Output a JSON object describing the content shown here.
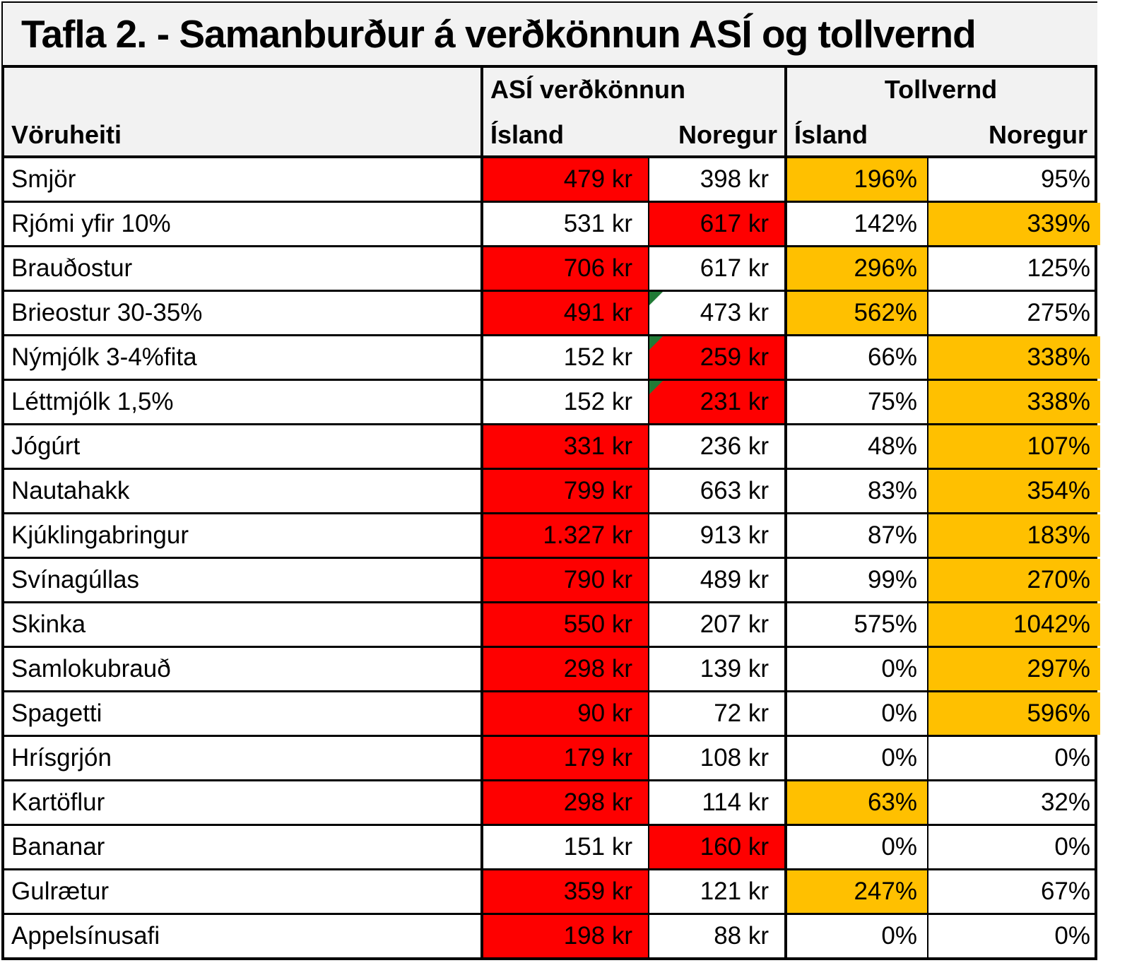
{
  "colors": {
    "red": "#fe0000",
    "orange": "#ffc000",
    "header_bg": "#f2f2f2",
    "row_bg": "#ffffff",
    "border": "#000000",
    "corner_green": "#217a36",
    "text": "#000000"
  },
  "chart_data": {
    "type": "table",
    "title": "Tafla 2. - Samanburður á verðkönnun ASÍ og tollvernd",
    "row_header": "Vöruheiti",
    "groups": [
      {
        "label": "ASÍ verðkönnun",
        "columns": [
          "Ísland",
          "Noregur"
        ]
      },
      {
        "label": "Tollvernd",
        "columns": [
          "Ísland",
          "Noregur"
        ]
      }
    ],
    "highlight_legend": {
      "red": "highlighted price cell",
      "orange": "highlighted tariff cell",
      "corner": "green corner indicator"
    },
    "rows": [
      {
        "name": "Smjör",
        "cells": [
          {
            "v": "479 kr",
            "fill": "red"
          },
          {
            "v": "398 kr"
          },
          {
            "v": "196%",
            "fill": "orange"
          },
          {
            "v": "95%"
          }
        ]
      },
      {
        "name": "Rjómi yfir 10%",
        "cells": [
          {
            "v": "531 kr"
          },
          {
            "v": "617 kr",
            "fill": "red"
          },
          {
            "v": "142%"
          },
          {
            "v": "339%",
            "fill": "orange"
          }
        ]
      },
      {
        "name": "Brauðostur",
        "cells": [
          {
            "v": "706 kr",
            "fill": "red"
          },
          {
            "v": "617 kr"
          },
          {
            "v": "296%",
            "fill": "orange"
          },
          {
            "v": "125%"
          }
        ]
      },
      {
        "name": "Brieostur 30-35%",
        "cells": [
          {
            "v": "491 kr",
            "fill": "red"
          },
          {
            "v": "473 kr",
            "corner": true
          },
          {
            "v": "562%",
            "fill": "orange"
          },
          {
            "v": "275%"
          }
        ]
      },
      {
        "name": "Nýmjólk 3-4%fita",
        "cells": [
          {
            "v": "152 kr"
          },
          {
            "v": "259 kr",
            "fill": "red",
            "corner": true
          },
          {
            "v": "66%"
          },
          {
            "v": "338%",
            "fill": "orange"
          }
        ]
      },
      {
        "name": "Léttmjólk 1,5%",
        "cells": [
          {
            "v": "152 kr"
          },
          {
            "v": "231 kr",
            "fill": "red",
            "corner": true
          },
          {
            "v": "75%"
          },
          {
            "v": "338%",
            "fill": "orange"
          }
        ]
      },
      {
        "name": "Jógúrt",
        "cells": [
          {
            "v": "331 kr",
            "fill": "red"
          },
          {
            "v": "236 kr"
          },
          {
            "v": "48%"
          },
          {
            "v": "107%",
            "fill": "orange"
          }
        ]
      },
      {
        "name": "Nautahakk",
        "cells": [
          {
            "v": "799 kr",
            "fill": "red"
          },
          {
            "v": "663 kr"
          },
          {
            "v": "83%"
          },
          {
            "v": "354%",
            "fill": "orange"
          }
        ]
      },
      {
        "name": "Kjúklingabringur",
        "cells": [
          {
            "v": "1.327 kr",
            "fill": "red"
          },
          {
            "v": "913 kr"
          },
          {
            "v": "87%"
          },
          {
            "v": "183%",
            "fill": "orange"
          }
        ]
      },
      {
        "name": "Svínagúllas",
        "cells": [
          {
            "v": "790 kr",
            "fill": "red"
          },
          {
            "v": "489 kr"
          },
          {
            "v": "99%"
          },
          {
            "v": "270%",
            "fill": "orange"
          }
        ]
      },
      {
        "name": "Skinka",
        "cells": [
          {
            "v": "550 kr",
            "fill": "red"
          },
          {
            "v": "207 kr"
          },
          {
            "v": "575%"
          },
          {
            "v": "1042%",
            "fill": "orange"
          }
        ]
      },
      {
        "name": "Samlokubrauð",
        "cells": [
          {
            "v": "298 kr",
            "fill": "red"
          },
          {
            "v": "139 kr"
          },
          {
            "v": "0%"
          },
          {
            "v": "297%",
            "fill": "orange"
          }
        ]
      },
      {
        "name": "Spagetti",
        "cells": [
          {
            "v": "90 kr",
            "fill": "red"
          },
          {
            "v": "72 kr"
          },
          {
            "v": "0%"
          },
          {
            "v": "596%",
            "fill": "orange"
          }
        ]
      },
      {
        "name": "Hrísgrjón",
        "cells": [
          {
            "v": "179 kr",
            "fill": "red"
          },
          {
            "v": "108 kr"
          },
          {
            "v": "0%"
          },
          {
            "v": "0%"
          }
        ]
      },
      {
        "name": "Kartöflur",
        "cells": [
          {
            "v": "298 kr",
            "fill": "red"
          },
          {
            "v": "114 kr"
          },
          {
            "v": "63%",
            "fill": "orange"
          },
          {
            "v": "32%"
          }
        ]
      },
      {
        "name": "Bananar",
        "cells": [
          {
            "v": "151 kr"
          },
          {
            "v": "160 kr",
            "fill": "red"
          },
          {
            "v": "0%"
          },
          {
            "v": "0%"
          }
        ]
      },
      {
        "name": "Gulrætur",
        "cells": [
          {
            "v": "359 kr",
            "fill": "red"
          },
          {
            "v": "121 kr"
          },
          {
            "v": "247%",
            "fill": "orange"
          },
          {
            "v": "67%"
          }
        ]
      },
      {
        "name": "Appelsínusafi",
        "cells": [
          {
            "v": "198 kr",
            "fill": "red"
          },
          {
            "v": "88 kr"
          },
          {
            "v": "0%"
          },
          {
            "v": "0%"
          }
        ]
      }
    ]
  }
}
